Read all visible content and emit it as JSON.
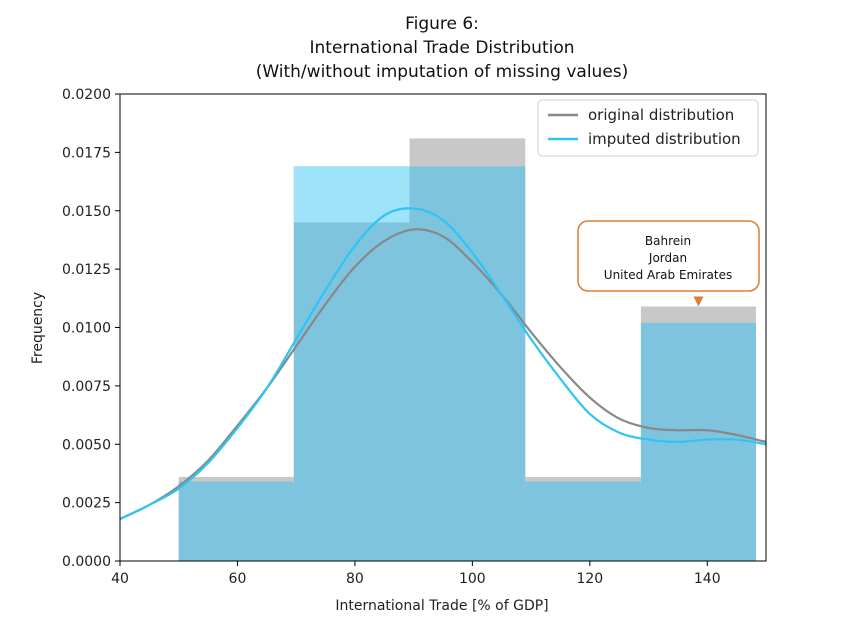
{
  "chart_data": {
    "type": "histogram",
    "title_lines": [
      "Figure 6:",
      "International Trade Distribution",
      "(With/without imputation of missing values)"
    ],
    "xlabel": "International Trade [% of GDP]",
    "ylabel": "Frequency",
    "xlim": [
      40,
      150
    ],
    "ylim": [
      0,
      0.02
    ],
    "xticks": [
      40,
      60,
      80,
      100,
      120,
      140
    ],
    "xtick_labels": [
      "40",
      "60",
      "80",
      "100",
      "120",
      "140"
    ],
    "yticks": [
      0,
      0.0025,
      0.005,
      0.0075,
      0.01,
      0.0125,
      0.015,
      0.0175,
      0.02
    ],
    "ytick_labels": [
      "0.0000",
      "0.0025",
      "0.0050",
      "0.0075",
      "0.0100",
      "0.0125",
      "0.0150",
      "0.0175",
      "0.0200"
    ],
    "bin_edges": [
      50,
      69.6,
      89.3,
      109,
      128.7,
      148.3
    ],
    "bars_original": [
      0.0036,
      0.0145,
      0.0181,
      0.0036,
      0.0109
    ],
    "bars_imputed": [
      0.0034,
      0.0169,
      0.0169,
      0.0034,
      0.0102
    ],
    "colors": {
      "original_bar": "#c8c8c8",
      "imputed_bar": "#7ec4df",
      "imputed_bar_light": "#9ee3f8",
      "original_line": "#888888",
      "imputed_line": "#2ec4f5",
      "annotation_border": "#e07b39"
    },
    "series": [
      {
        "name": "original distribution",
        "x": [
          40,
          45,
          50,
          55,
          60,
          65,
          70,
          75,
          80,
          85,
          90,
          95,
          100,
          105,
          110,
          115,
          120,
          125,
          130,
          135,
          140,
          145,
          150
        ],
        "y": [
          0.0018,
          0.0024,
          0.0032,
          0.0043,
          0.0058,
          0.0074,
          0.0092,
          0.011,
          0.0126,
          0.0137,
          0.0142,
          0.0139,
          0.0128,
          0.0114,
          0.0098,
          0.0083,
          0.007,
          0.0061,
          0.0057,
          0.0056,
          0.0056,
          0.0054,
          0.0051
        ]
      },
      {
        "name": "imputed distribution",
        "x": [
          40,
          45,
          50,
          55,
          60,
          65,
          70,
          75,
          80,
          85,
          90,
          95,
          100,
          105,
          110,
          115,
          120,
          125,
          130,
          135,
          140,
          145,
          150
        ],
        "y": [
          0.0018,
          0.0024,
          0.0031,
          0.0042,
          0.0057,
          0.0074,
          0.0095,
          0.0116,
          0.0135,
          0.0148,
          0.0151,
          0.0146,
          0.0132,
          0.0114,
          0.0095,
          0.0078,
          0.0063,
          0.0055,
          0.0052,
          0.0051,
          0.0052,
          0.0052,
          0.005
        ]
      }
    ],
    "legend": {
      "position": "top-right",
      "entries": [
        "original distribution",
        "imputed distribution"
      ]
    },
    "annotation": {
      "lines": [
        "Bahrein",
        "Jordan",
        "United Arab Emirates"
      ],
      "points_to_x": 138.5,
      "points_to_y": 0.0109
    }
  }
}
